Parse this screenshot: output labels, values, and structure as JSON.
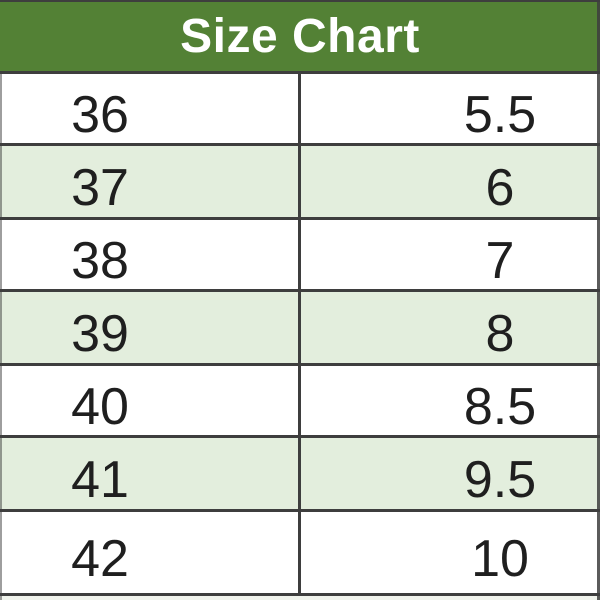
{
  "chart_data": {
    "type": "table",
    "title": "Size Chart",
    "rows": [
      [
        "36",
        "5.5"
      ],
      [
        "37",
        "6"
      ],
      [
        "38",
        "7"
      ],
      [
        "39",
        "8"
      ],
      [
        "40",
        "8.5"
      ],
      [
        "41",
        "9.5"
      ],
      [
        "42",
        "10"
      ]
    ]
  },
  "theme": {
    "header_bg": "#538135",
    "header_text": "#ffffff",
    "row_green_bg": "#e3eedd",
    "row_white_bg": "#ffffff",
    "border_color": "#3e3e3e",
    "cell_text": "#1f1f1f"
  }
}
